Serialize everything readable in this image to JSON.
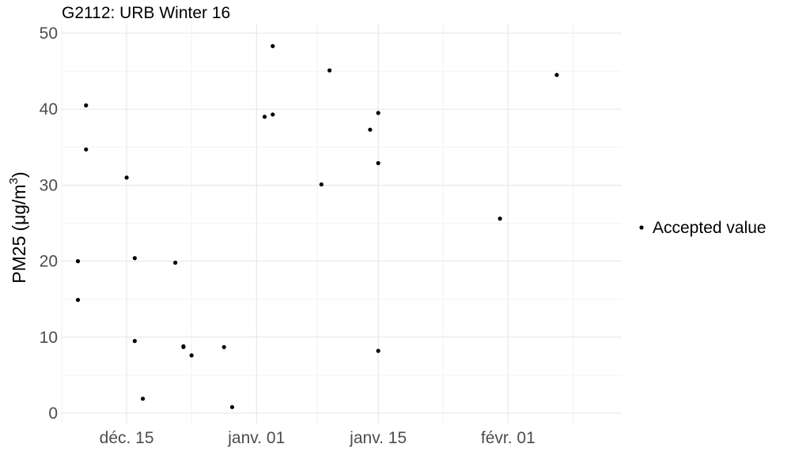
{
  "chart_data": {
    "type": "scatter",
    "title": "G2112: URB Winter 16",
    "ylabel": "PM25",
    "ylabel_unit_prefix": "(μg/m",
    "ylabel_unit_exp": "3",
    "ylabel_unit_suffix": ")",
    "xlabel": "",
    "ylim": [
      0,
      50
    ],
    "yticks": [
      0,
      10,
      20,
      30,
      40,
      50
    ],
    "xlim": [
      "2015-11-30",
      "2016-02-07"
    ],
    "xticks": [
      {
        "date": "2015-12-08",
        "label": "déc. 15"
      },
      {
        "date": "2015-12-24",
        "label": "janv. 01"
      },
      {
        "date": "2016-01-08",
        "label": "janv. 15"
      },
      {
        "date": "2016-01-24",
        "label": "févr. 01"
      }
    ],
    "grid": true,
    "legend_position": "right",
    "series": [
      {
        "name": "Accepted value",
        "color": "#000000",
        "points": [
          {
            "x": "2015-12-02",
            "y": 20.0
          },
          {
            "x": "2015-12-02",
            "y": 14.9
          },
          {
            "x": "2015-12-03",
            "y": 34.7
          },
          {
            "x": "2015-12-03",
            "y": 40.5
          },
          {
            "x": "2015-12-08",
            "y": 31.0
          },
          {
            "x": "2015-12-09",
            "y": 20.4
          },
          {
            "x": "2015-12-09",
            "y": 9.5
          },
          {
            "x": "2015-12-10",
            "y": 1.9
          },
          {
            "x": "2015-12-14",
            "y": 19.8
          },
          {
            "x": "2015-12-15",
            "y": 8.8
          },
          {
            "x": "2015-12-15",
            "y": 8.7
          },
          {
            "x": "2015-12-16",
            "y": 7.6
          },
          {
            "x": "2015-12-20",
            "y": 8.7
          },
          {
            "x": "2015-12-21",
            "y": 0.8
          },
          {
            "x": "2015-12-25",
            "y": 39.0
          },
          {
            "x": "2015-12-26",
            "y": 48.3
          },
          {
            "x": "2015-12-26",
            "y": 39.3
          },
          {
            "x": "2016-01-01",
            "y": 30.1
          },
          {
            "x": "2016-01-02",
            "y": 45.1
          },
          {
            "x": "2016-01-07",
            "y": 37.3
          },
          {
            "x": "2016-01-08",
            "y": 39.5
          },
          {
            "x": "2016-01-08",
            "y": 32.9
          },
          {
            "x": "2016-01-08",
            "y": 8.2
          },
          {
            "x": "2016-01-23",
            "y": 25.6
          },
          {
            "x": "2016-01-30",
            "y": 44.5
          }
        ]
      }
    ]
  }
}
